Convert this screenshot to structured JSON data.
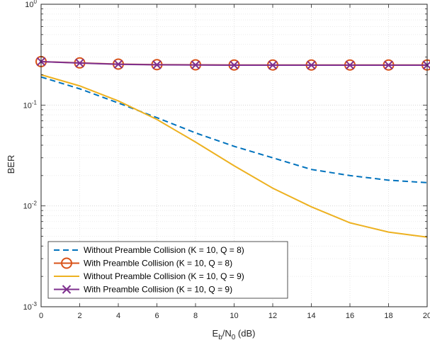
{
  "chart_data": {
    "type": "line",
    "title": "",
    "xlabel": {
      "main": "E",
      "sub1": "b",
      "mid": "/N",
      "sub2": "0",
      "tail": " (dB)"
    },
    "ylabel": "BER",
    "xlim": [
      0,
      20
    ],
    "ylim": [
      0.001,
      1
    ],
    "yscale": "log",
    "grid": true,
    "legend_position": "bottom-left",
    "x_ticks": [
      "0",
      "2",
      "4",
      "6",
      "8",
      "10",
      "12",
      "14",
      "16",
      "18",
      "20"
    ],
    "y_ticks": [
      {
        "value": 0.001,
        "base": "10",
        "exp": "-3"
      },
      {
        "value": 0.01,
        "base": "10",
        "exp": "-2"
      },
      {
        "value": 0.1,
        "base": "10",
        "exp": "-1"
      },
      {
        "value": 1,
        "base": "10",
        "exp": "0"
      }
    ],
    "x": [
      0,
      2,
      4,
      6,
      8,
      10,
      12,
      14,
      16,
      18,
      20
    ],
    "series": [
      {
        "name": "Without Preamble Collision (K = 10, Q = 8)",
        "color": "#0072BD",
        "line": "dashed",
        "marker": "none",
        "values": [
          0.19,
          0.145,
          0.105,
          0.075,
          0.053,
          0.039,
          0.03,
          0.023,
          0.02,
          0.018,
          0.017
        ]
      },
      {
        "name": "With Preamble Collision (K = 10, Q = 8)",
        "color": "#D95319",
        "line": "solid",
        "marker": "circle",
        "values": [
          0.27,
          0.262,
          0.255,
          0.252,
          0.251,
          0.25,
          0.25,
          0.25,
          0.25,
          0.25,
          0.25
        ]
      },
      {
        "name": "Without Preamble Collision (K = 10, Q = 9)",
        "color": "#EDB120",
        "line": "solid",
        "marker": "none",
        "values": [
          0.2,
          0.155,
          0.11,
          0.072,
          0.043,
          0.025,
          0.015,
          0.0098,
          0.0068,
          0.0055,
          0.0049
        ]
      },
      {
        "name": "With Preamble Collision (K = 10, Q = 9)",
        "color": "#7E2F8E",
        "line": "solid",
        "marker": "x",
        "values": [
          0.27,
          0.261,
          0.254,
          0.251,
          0.25,
          0.249,
          0.249,
          0.249,
          0.249,
          0.249,
          0.249
        ]
      }
    ]
  }
}
